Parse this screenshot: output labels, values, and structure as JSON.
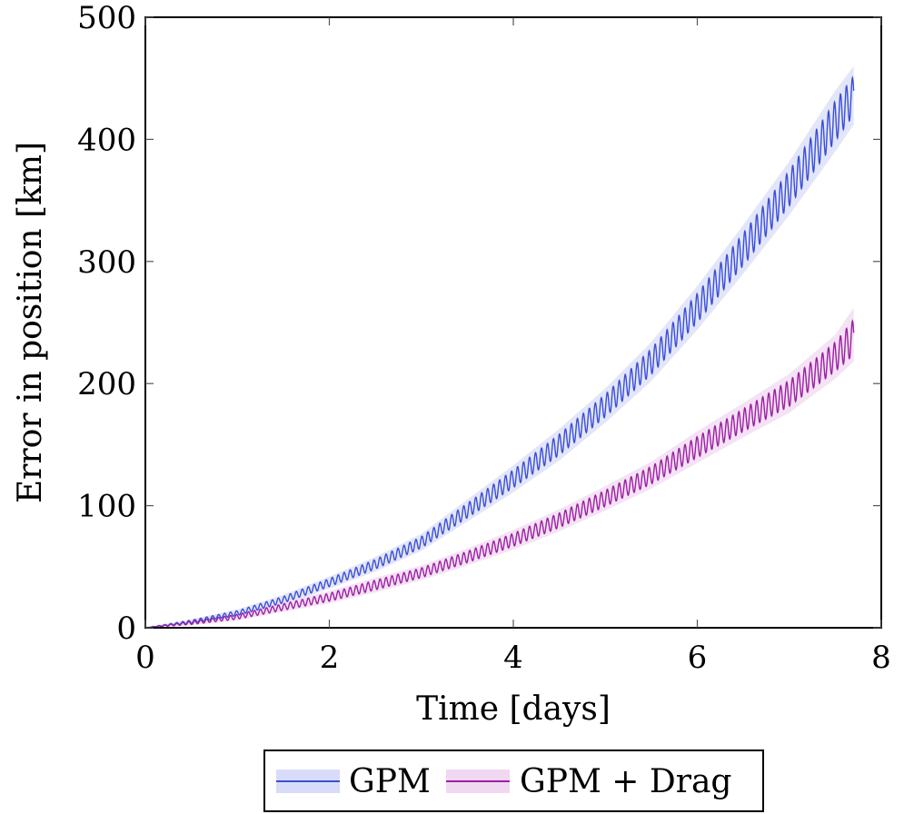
{
  "chart_data": {
    "type": "line",
    "xlabel": "Time [days]",
    "ylabel": "Error in position [km]",
    "xlim": [
      0,
      8
    ],
    "ylim": [
      0,
      500
    ],
    "xticks": [
      "0",
      "2",
      "4",
      "6",
      "8"
    ],
    "yticks": [
      "0",
      "100",
      "200",
      "300",
      "400",
      "500"
    ],
    "grid": false,
    "legend_position": "bottom-center",
    "x": [
      0,
      0.5,
      1,
      1.5,
      2,
      2.5,
      3,
      3.5,
      4,
      4.5,
      5,
      5.5,
      6,
      6.5,
      7,
      7.5,
      7.7
    ],
    "series": [
      {
        "name": "GPM",
        "color": "#3a4fd6",
        "band_color": "#d9dcf8",
        "values": [
          0,
          5,
          12,
          23,
          37,
          52,
          70,
          96,
          122,
          150,
          182,
          218,
          262,
          310,
          360,
          415,
          436
        ],
        "lower": [
          0,
          3,
          9,
          19,
          32,
          46,
          63,
          87,
          111,
          137,
          168,
          202,
          244,
          290,
          338,
          390,
          412
        ],
        "upper": [
          0,
          7,
          15,
          27,
          42,
          58,
          77,
          105,
          133,
          163,
          196,
          234,
          280,
          330,
          382,
          440,
          460
        ]
      },
      {
        "name": "GPM + Drag",
        "color": "#9c1fa3",
        "band_color": "#f0d8f2",
        "values": [
          0,
          4,
          9,
          17,
          25,
          35,
          45,
          58,
          72,
          88,
          106,
          125,
          148,
          170,
          192,
          222,
          238
        ],
        "lower": [
          0,
          2,
          6,
          13,
          20,
          29,
          39,
          51,
          64,
          79,
          96,
          114,
          135,
          156,
          176,
          204,
          218
        ],
        "upper": [
          0,
          6,
          12,
          21,
          30,
          41,
          51,
          65,
          80,
          97,
          116,
          136,
          161,
          184,
          208,
          240,
          262
        ]
      }
    ]
  }
}
